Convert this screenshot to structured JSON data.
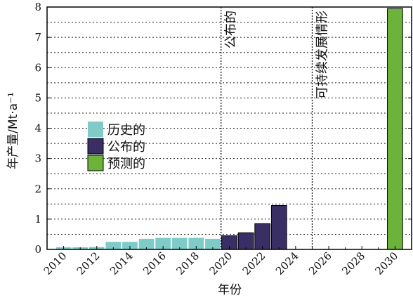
{
  "chart_data": {
    "type": "bar",
    "xlabel": "年份",
    "ylabel": "年产量/Mt·a⁻¹",
    "xlim": [
      2009,
      2031
    ],
    "ylim": [
      0,
      8
    ],
    "x_ticks": [
      2010,
      2012,
      2014,
      2016,
      2018,
      2020,
      2022,
      2024,
      2026,
      2028,
      2030
    ],
    "y_ticks": [
      0,
      1,
      2,
      3,
      4,
      5,
      6,
      7,
      8
    ],
    "grid": "dotted horizontal at every 0.5",
    "legend_position": "left-middle",
    "series": [
      {
        "name": "历史的",
        "color": "#7ecbc8",
        "x": [
          2010,
          2011,
          2012,
          2013,
          2014,
          2015,
          2016,
          2017,
          2018,
          2019
        ],
        "values": [
          0.07,
          0.07,
          0.08,
          0.25,
          0.25,
          0.35,
          0.38,
          0.38,
          0.38,
          0.35
        ]
      },
      {
        "name": "公布的",
        "color": "#3a2f65",
        "x": [
          2020,
          2021,
          2022,
          2023
        ],
        "values": [
          0.45,
          0.55,
          0.85,
          1.45
        ]
      },
      {
        "name": "预测的",
        "color": "#6bb33b",
        "x": [
          2030
        ],
        "values": [
          7.95
        ]
      }
    ],
    "annotations": [
      {
        "text": "公布的",
        "x": 2019.5
      },
      {
        "text": "可持续发展情形",
        "x": 2025
      }
    ]
  }
}
